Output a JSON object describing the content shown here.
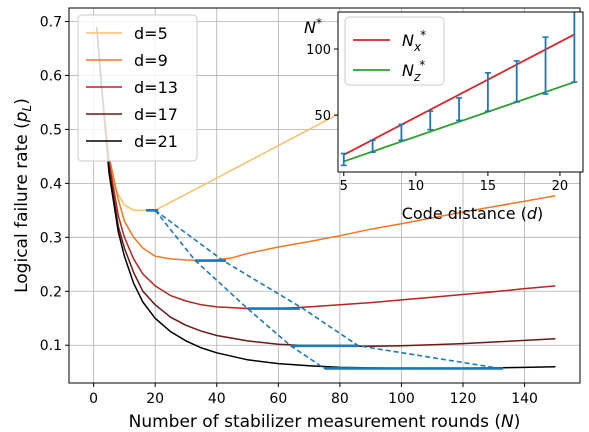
{
  "chart_data": [
    {
      "type": "line",
      "xlabel": "Number of stabilizer measurement rounds (N)",
      "ylabel": "Logical failure rate (p_L)",
      "xlim": [
        -8,
        158
      ],
      "ylim": [
        0.03,
        0.725
      ],
      "xticks": [
        0,
        20,
        40,
        60,
        80,
        100,
        120,
        140
      ],
      "yticks": [
        0.1,
        0.2,
        0.3,
        0.4,
        0.5,
        0.6,
        0.7
      ],
      "grid": true,
      "legend": "top-left",
      "series": [
        {
          "name": "d=5",
          "color": "#fdbf6f",
          "x": [
            1,
            3,
            5,
            7,
            10,
            13,
            16,
            20,
            25,
            30,
            40,
            50,
            60,
            70,
            80,
            90,
            100,
            110,
            120,
            130,
            140,
            150
          ],
          "y": [
            0.69,
            0.56,
            0.45,
            0.39,
            0.36,
            0.35,
            0.35,
            0.35,
            0.365,
            0.38,
            0.41,
            0.44,
            0.47,
            0.5,
            0.53,
            0.56,
            0.59,
            0.62,
            0.65,
            0.67,
            0.69,
            0.7
          ]
        },
        {
          "name": "d=9",
          "color": "#f07820",
          "x": [
            1,
            3,
            5,
            8,
            10,
            13,
            16,
            20,
            25,
            30,
            35,
            40,
            45,
            50,
            60,
            70,
            80,
            90,
            100,
            110,
            120,
            130,
            140,
            150
          ],
          "y": [
            0.69,
            0.56,
            0.45,
            0.37,
            0.33,
            0.3,
            0.28,
            0.265,
            0.26,
            0.258,
            0.257,
            0.258,
            0.262,
            0.27,
            0.282,
            0.292,
            0.303,
            0.315,
            0.325,
            0.336,
            0.347,
            0.357,
            0.367,
            0.377
          ]
        },
        {
          "name": "d=13",
          "color": "#b5261e",
          "x": [
            1,
            3,
            5,
            8,
            10,
            13,
            16,
            20,
            25,
            30,
            35,
            40,
            50,
            60,
            70,
            80,
            90,
            100,
            110,
            120,
            130,
            140,
            150
          ],
          "y": [
            0.69,
            0.55,
            0.44,
            0.34,
            0.3,
            0.26,
            0.232,
            0.21,
            0.192,
            0.182,
            0.175,
            0.171,
            0.168,
            0.168,
            0.171,
            0.175,
            0.179,
            0.184,
            0.189,
            0.194,
            0.199,
            0.205,
            0.21
          ]
        },
        {
          "name": "d=17",
          "color": "#6b1a14",
          "x": [
            1,
            3,
            5,
            8,
            10,
            13,
            16,
            20,
            25,
            30,
            35,
            40,
            50,
            60,
            70,
            80,
            90,
            100,
            110,
            120,
            130,
            140,
            150
          ],
          "y": [
            0.69,
            0.55,
            0.43,
            0.32,
            0.28,
            0.235,
            0.2,
            0.175,
            0.152,
            0.137,
            0.126,
            0.118,
            0.108,
            0.102,
            0.099,
            0.098,
            0.098,
            0.099,
            0.101,
            0.103,
            0.106,
            0.109,
            0.112
          ]
        },
        {
          "name": "d=21",
          "color": "#000000",
          "x": [
            1,
            3,
            5,
            8,
            10,
            13,
            16,
            20,
            25,
            30,
            35,
            40,
            50,
            60,
            70,
            80,
            90,
            100,
            110,
            120,
            130,
            140,
            150
          ],
          "y": [
            0.69,
            0.55,
            0.42,
            0.31,
            0.265,
            0.215,
            0.18,
            0.15,
            0.125,
            0.108,
            0.095,
            0.086,
            0.073,
            0.066,
            0.062,
            0.059,
            0.058,
            0.057,
            0.057,
            0.057,
            0.058,
            0.059,
            0.06
          ]
        }
      ],
      "optimum_markers": {
        "color": "#1f77b4",
        "segments": [
          {
            "x": [
              17,
              21
            ],
            "y": 0.35
          },
          {
            "x": [
              33,
              43
            ],
            "y": 0.257
          },
          {
            "x": [
              50,
              67
            ],
            "y": 0.168
          },
          {
            "x": [
              64,
              86
            ],
            "y": 0.099
          },
          {
            "x": [
              75,
              133
            ],
            "y": 0.057
          }
        ],
        "dashed_lower": {
          "x": [
            20,
            33,
            50,
            64,
            75
          ],
          "y": [
            0.35,
            0.257,
            0.168,
            0.099,
            0.057
          ]
        },
        "dashed_upper": {
          "x": [
            20,
            42,
            68,
            86,
            132
          ],
          "y": [
            0.35,
            0.257,
            0.168,
            0.099,
            0.057
          ]
        }
      }
    },
    {
      "type": "scatter",
      "ylabel_symbol": "N*",
      "xlabel": "Code distance (d)",
      "xlim": [
        4.6,
        21.6
      ],
      "ylim": [
        7,
        128
      ],
      "xticks": [
        5,
        10,
        15,
        20
      ],
      "yticks": [
        50,
        100
      ],
      "grid": false,
      "legend": "top-left",
      "series": [
        {
          "name": "N_x*",
          "color": "#d62728",
          "x": [
            5,
            21
          ],
          "y": [
            20,
            111
          ]
        },
        {
          "name": "N_z*",
          "color": "#2ca02c",
          "x": [
            5,
            21
          ],
          "y": [
            15,
            75
          ]
        }
      ],
      "error_bars": {
        "color": "#1f77b4",
        "x": [
          5,
          7,
          9,
          11,
          13,
          15,
          17,
          19,
          21
        ],
        "low": [
          12,
          22,
          31,
          39,
          46,
          53,
          60,
          66,
          75
        ],
        "high": [
          21,
          31,
          43,
          53,
          63,
          82,
          91,
          109,
          139
        ]
      }
    }
  ]
}
